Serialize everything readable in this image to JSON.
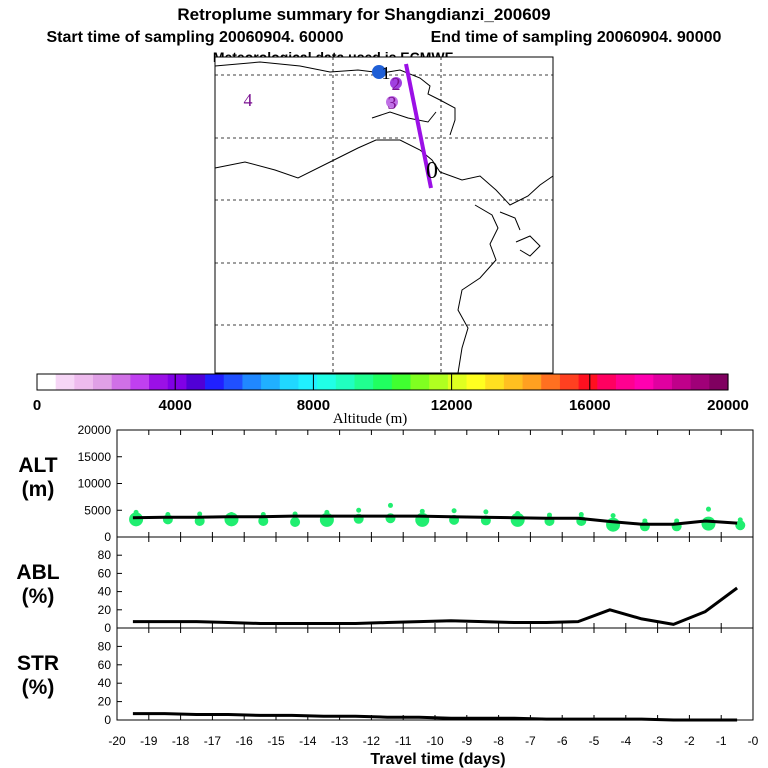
{
  "header": {
    "title": "Retroplume summary for Shangdianzi_200609",
    "start_label": "Start time of sampling 20060904. 60000",
    "end_label": "End time of sampling 20060904. 90000",
    "met_label": "Meteorological data used is ECMWF"
  },
  "map": {
    "plume_color": "#9b10e6",
    "markers": [
      {
        "label": "1",
        "color": "#1f5fd6"
      },
      {
        "label": "2",
        "color": "#a040e0"
      },
      {
        "label": "3",
        "color": "#c070e6"
      },
      {
        "label": "4",
        "color": "#7a1090"
      },
      {
        "label": "0",
        "color": "#000000"
      }
    ]
  },
  "colorbar": {
    "label": "Altitude (m)",
    "ticks": [
      "0",
      "4000",
      "8000",
      "12000",
      "16000",
      "20000"
    ],
    "colors": [
      "#ffffff",
      "#f6d6f6",
      "#eebbee",
      "#e0a0e6",
      "#d070e6",
      "#c040f0",
      "#9b10e6",
      "#8000e6",
      "#5000d6",
      "#2020ff",
      "#2050ff",
      "#2088ff",
      "#20b0ff",
      "#20d8ff",
      "#20f0ff",
      "#20ffe6",
      "#20ffc0",
      "#20ff90",
      "#20ff60",
      "#40ff30",
      "#80ff20",
      "#b0ff20",
      "#e0ff20",
      "#ffff20",
      "#ffe020",
      "#ffc020",
      "#ffa020",
      "#ff7020",
      "#ff4020",
      "#ff1020",
      "#ff0060",
      "#ff0090",
      "#ff00b0",
      "#e000a0",
      "#c0008a",
      "#a00078",
      "#800060"
    ]
  },
  "chart_data": [
    {
      "type": "line",
      "name": "ALT",
      "ylabel": "ALT\n(m)",
      "ylabel_lines": [
        "ALT",
        "(m)"
      ],
      "ylim": [
        0,
        20000
      ],
      "yticks": [
        "0",
        "5000",
        "10000",
        "15000",
        "20000"
      ],
      "xlim": [
        -20,
        0
      ],
      "x": [
        -19.5,
        -18.5,
        -17.5,
        -16.5,
        -15.5,
        -14.5,
        -13.5,
        -12.5,
        -11.5,
        -10.5,
        -9.5,
        -8.5,
        -7.5,
        -6.5,
        -5.5,
        -4.5,
        -3.5,
        -2.5,
        -1.5,
        -0.5
      ],
      "values": [
        3600,
        3700,
        3700,
        3800,
        3800,
        3900,
        3900,
        3900,
        3900,
        3900,
        3800,
        3700,
        3600,
        3500,
        3500,
        2900,
        2400,
        2400,
        3000,
        2600
      ],
      "dots": [
        {
          "x": -19.4,
          "y": 3300
        },
        {
          "x": -19.4,
          "y": 4600
        },
        {
          "x": -18.4,
          "y": 3300
        },
        {
          "x": -18.4,
          "y": 4200
        },
        {
          "x": -17.4,
          "y": 3000
        },
        {
          "x": -17.4,
          "y": 4300
        },
        {
          "x": -16.4,
          "y": 3300
        },
        {
          "x": -16.4,
          "y": 4200
        },
        {
          "x": -15.4,
          "y": 3000
        },
        {
          "x": -15.4,
          "y": 4200
        },
        {
          "x": -14.4,
          "y": 2800
        },
        {
          "x": -14.4,
          "y": 4300
        },
        {
          "x": -13.4,
          "y": 3200
        },
        {
          "x": -13.4,
          "y": 4600
        },
        {
          "x": -12.4,
          "y": 3400
        },
        {
          "x": -12.4,
          "y": 5000
        },
        {
          "x": -11.4,
          "y": 3500
        },
        {
          "x": -11.4,
          "y": 5900
        },
        {
          "x": -10.4,
          "y": 3200
        },
        {
          "x": -10.4,
          "y": 4800
        },
        {
          "x": -9.4,
          "y": 3200
        },
        {
          "x": -9.4,
          "y": 4900
        },
        {
          "x": -8.4,
          "y": 3100
        },
        {
          "x": -8.4,
          "y": 4700
        },
        {
          "x": -7.4,
          "y": 3200
        },
        {
          "x": -7.4,
          "y": 4400
        },
        {
          "x": -6.4,
          "y": 3000
        },
        {
          "x": -6.4,
          "y": 4100
        },
        {
          "x": -5.4,
          "y": 3000
        },
        {
          "x": -5.4,
          "y": 4200
        },
        {
          "x": -4.4,
          "y": 2300
        },
        {
          "x": -4.4,
          "y": 4000
        },
        {
          "x": -3.4,
          "y": 2000
        },
        {
          "x": -3.4,
          "y": 3000
        },
        {
          "x": -2.4,
          "y": 2000
        },
        {
          "x": -2.4,
          "y": 3000
        },
        {
          "x": -1.4,
          "y": 2500
        },
        {
          "x": -1.4,
          "y": 5200
        },
        {
          "x": -0.4,
          "y": 2200
        },
        {
          "x": -0.4,
          "y": 3200
        }
      ],
      "dot_color": "#20ee70"
    },
    {
      "type": "line",
      "name": "ABL",
      "ylabel_lines": [
        "ABL",
        "(%)"
      ],
      "ylim": [
        0,
        100
      ],
      "yticks": [
        "0",
        "20",
        "40",
        "60",
        "80"
      ],
      "xlim": [
        -20,
        0
      ],
      "x": [
        -19.5,
        -18.5,
        -17.5,
        -16.5,
        -15.5,
        -14.5,
        -13.5,
        -12.5,
        -11.5,
        -10.5,
        -9.5,
        -8.5,
        -7.5,
        -6.5,
        -5.5,
        -4.5,
        -3.5,
        -2.5,
        -1.5,
        -0.5
      ],
      "values": [
        7,
        7,
        7,
        6,
        5,
        5,
        5,
        5,
        6,
        7,
        8,
        7,
        6,
        6,
        7,
        20,
        10,
        4,
        18,
        44
      ]
    },
    {
      "type": "line",
      "name": "STR",
      "ylabel_lines": [
        "STR",
        "(%)"
      ],
      "ylim": [
        0,
        100
      ],
      "yticks": [
        "0",
        "20",
        "40",
        "60",
        "80"
      ],
      "xlim": [
        -20,
        0
      ],
      "xlabel": "Travel time (days)",
      "xticks": [
        "-20",
        "-19",
        "-18",
        "-17",
        "-16",
        "-15",
        "-14",
        "-13",
        "-12",
        "-11",
        "-10",
        "-9",
        "-8",
        "-7",
        "-6",
        "-5",
        "-4",
        "-3",
        "-2",
        "-1",
        "-0"
      ],
      "x": [
        -19.5,
        -18.5,
        -17.5,
        -16.5,
        -15.5,
        -14.5,
        -13.5,
        -12.5,
        -11.5,
        -10.5,
        -9.5,
        -8.5,
        -7.5,
        -6.5,
        -5.5,
        -4.5,
        -3.5,
        -2.5,
        -1.5,
        -0.5
      ],
      "values": [
        7,
        7,
        6,
        6,
        5,
        5,
        4,
        4,
        3,
        3,
        2,
        2,
        2,
        1,
        1,
        1,
        1,
        0,
        0,
        0
      ]
    }
  ]
}
